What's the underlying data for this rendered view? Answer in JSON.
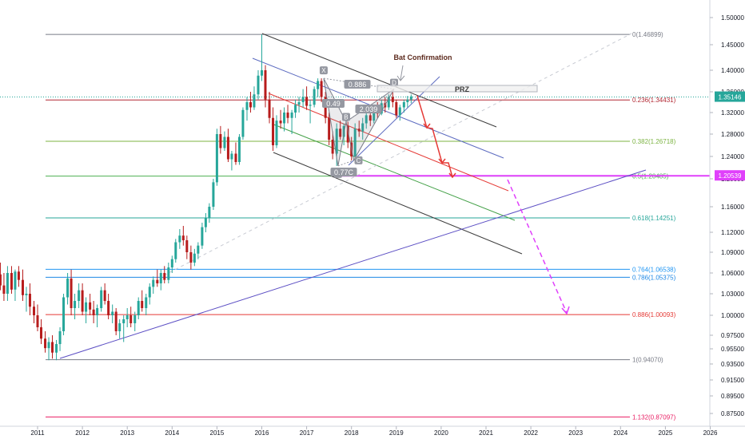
{
  "chart_data": {
    "type": "candlestick",
    "symbol_axis": "price",
    "x_axis": {
      "ticks": [
        "2011",
        "2012",
        "2013",
        "2014",
        "2015",
        "2016",
        "2017",
        "2018",
        "2019",
        "2020",
        "2021",
        "2022",
        "2023",
        "2024",
        "2025",
        "2026"
      ],
      "range": [
        2010.0,
        2026.3
      ]
    },
    "y_axis": {
      "ticks": [
        "1.50000",
        "1.45000",
        "1.40000",
        "1.36000",
        "1.32000",
        "1.28000",
        "1.24000",
        "1.20000",
        "1.16000",
        "1.12000",
        "1.09000",
        "1.06000",
        "1.03000",
        "1.00000",
        "0.97500",
        "0.95500",
        "0.93500",
        "0.91500",
        "0.89500",
        "0.87500"
      ],
      "current_price": "1.35146",
      "highlight_price": "1.20539",
      "scale": "nonlinear-log-like"
    },
    "fibonacci": [
      {
        "ratio": "0",
        "price": "1.46899",
        "text": "0(1.46899)",
        "color": "#787b86"
      },
      {
        "ratio": "0.236",
        "price": "1.34431",
        "text": "0.236(1.34431)",
        "color": "#b22833"
      },
      {
        "ratio": "0.382",
        "price": "1.26718",
        "text": "0.382(1.26718)",
        "color": "#7cb342"
      },
      {
        "ratio": "0.5",
        "price": "1.20485",
        "text": "0.5(1.20485)",
        "color": "#4caf50"
      },
      {
        "ratio": "0.618",
        "price": "1.14251",
        "text": "0.618(1.14251)",
        "color": "#26a69a"
      },
      {
        "ratio": "0.764",
        "price": "1.06538",
        "text": "0.764(1.06538)",
        "color": "#2196f3"
      },
      {
        "ratio": "0.786",
        "price": "1.05375",
        "text": "0.786(1.05375)",
        "color": "#1e88e5"
      },
      {
        "ratio": "0.886",
        "price": "1.00093",
        "text": "0.886(1.00093)",
        "color": "#e53935"
      },
      {
        "ratio": "1",
        "price": "0.94070",
        "text": "1(0.94070)",
        "color": "#787b86"
      },
      {
        "ratio": "1.132",
        "price": "0.87097",
        "text": "1.132(0.87097)",
        "color": "#e91e63"
      }
    ],
    "pattern": {
      "name": "Bat",
      "points": [
        {
          "label": "X",
          "year": 2017.38,
          "price": 1.385
        },
        {
          "label": "A",
          "year": 2017.7,
          "price": 1.223
        },
        {
          "label": "B",
          "year": 2017.88,
          "price": 1.303
        },
        {
          "label": "C",
          "year": 2018.05,
          "price": 1.233
        },
        {
          "label": "D",
          "year": 2018.95,
          "price": 1.365
        }
      ],
      "ratios": [
        "0.886",
        "0.49",
        "2.039",
        "0.77C"
      ],
      "prz_label": "PRZ",
      "confirmation_label": "Bat Confirmation"
    },
    "candles": [
      {
        "t": 2010.0,
        "o": 1.045,
        "h": 1.083,
        "l": 1.03,
        "c": 1.065
      },
      {
        "t": 2010.08,
        "o": 1.065,
        "h": 1.09,
        "l": 1.05,
        "c": 1.058
      },
      {
        "t": 2010.17,
        "o": 1.058,
        "h": 1.075,
        "l": 1.035,
        "c": 1.042
      },
      {
        "t": 2010.25,
        "o": 1.042,
        "h": 1.06,
        "l": 1.02,
        "c": 1.03
      },
      {
        "t": 2010.33,
        "o": 1.03,
        "h": 1.07,
        "l": 1.02,
        "c": 1.06
      },
      {
        "t": 2010.42,
        "o": 1.06,
        "h": 1.07,
        "l": 1.03,
        "c": 1.036
      },
      {
        "t": 2010.5,
        "o": 1.036,
        "h": 1.065,
        "l": 1.02,
        "c": 1.062
      },
      {
        "t": 2010.58,
        "o": 1.062,
        "h": 1.07,
        "l": 1.04,
        "c": 1.05
      },
      {
        "t": 2010.67,
        "o": 1.05,
        "h": 1.065,
        "l": 1.02,
        "c": 1.028
      },
      {
        "t": 2010.75,
        "o": 1.028,
        "h": 1.04,
        "l": 1.005,
        "c": 1.03
      },
      {
        "t": 2010.83,
        "o": 1.03,
        "h": 1.045,
        "l": 1.0,
        "c": 1.012
      },
      {
        "t": 2010.92,
        "o": 1.012,
        "h": 1.02,
        "l": 0.99,
        "c": 1.0
      },
      {
        "t": 2011.0,
        "o": 1.0,
        "h": 1.015,
        "l": 0.98,
        "c": 0.985
      },
      {
        "t": 2011.08,
        "o": 0.985,
        "h": 0.995,
        "l": 0.962,
        "c": 0.97
      },
      {
        "t": 2011.17,
        "o": 0.97,
        "h": 0.98,
        "l": 0.95,
        "c": 0.956
      },
      {
        "t": 2011.25,
        "o": 0.956,
        "h": 0.972,
        "l": 0.94,
        "c": 0.965
      },
      {
        "t": 2011.33,
        "o": 0.965,
        "h": 0.975,
        "l": 0.942,
        "c": 0.95
      },
      {
        "t": 2011.42,
        "o": 0.95,
        "h": 0.968,
        "l": 0.94,
        "c": 0.962
      },
      {
        "t": 2011.5,
        "o": 0.962,
        "h": 0.985,
        "l": 0.952,
        "c": 0.98
      },
      {
        "t": 2011.58,
        "o": 0.98,
        "h": 1.03,
        "l": 0.975,
        "c": 1.025
      },
      {
        "t": 2011.67,
        "o": 1.025,
        "h": 1.06,
        "l": 1.015,
        "c": 1.052
      },
      {
        "t": 2011.75,
        "o": 1.052,
        "h": 1.065,
        "l": 1.0,
        "c": 1.01
      },
      {
        "t": 2011.83,
        "o": 1.01,
        "h": 1.03,
        "l": 0.995,
        "c": 1.02
      },
      {
        "t": 2011.92,
        "o": 1.02,
        "h": 1.045,
        "l": 1.01,
        "c": 1.035
      },
      {
        "t": 2012.0,
        "o": 1.035,
        "h": 1.045,
        "l": 1.0,
        "c": 1.005
      },
      {
        "t": 2012.08,
        "o": 1.005,
        "h": 1.025,
        "l": 0.99,
        "c": 1.018
      },
      {
        "t": 2012.17,
        "o": 1.018,
        "h": 1.03,
        "l": 1.0,
        "c": 1.008
      },
      {
        "t": 2012.25,
        "o": 1.008,
        "h": 1.02,
        "l": 0.99,
        "c": 1.0
      },
      {
        "t": 2012.33,
        "o": 1.0,
        "h": 1.015,
        "l": 0.985,
        "c": 1.01
      },
      {
        "t": 2012.42,
        "o": 1.01,
        "h": 1.04,
        "l": 1.005,
        "c": 1.035
      },
      {
        "t": 2012.5,
        "o": 1.035,
        "h": 1.045,
        "l": 1.015,
        "c": 1.02
      },
      {
        "t": 2012.58,
        "o": 1.02,
        "h": 1.03,
        "l": 0.995,
        "c": 1.0
      },
      {
        "t": 2012.67,
        "o": 1.0,
        "h": 1.015,
        "l": 0.99,
        "c": 1.005
      },
      {
        "t": 2012.75,
        "o": 1.005,
        "h": 1.01,
        "l": 0.975,
        "c": 0.98
      },
      {
        "t": 2012.83,
        "o": 0.98,
        "h": 0.995,
        "l": 0.97,
        "c": 0.99
      },
      {
        "t": 2012.92,
        "o": 0.99,
        "h": 1.0,
        "l": 0.965,
        "c": 0.995
      },
      {
        "t": 2013.0,
        "o": 0.995,
        "h": 1.01,
        "l": 0.985,
        "c": 1.0
      },
      {
        "t": 2013.08,
        "o": 1.0,
        "h": 1.012,
        "l": 0.985,
        "c": 0.99
      },
      {
        "t": 2013.17,
        "o": 0.99,
        "h": 1.005,
        "l": 0.98,
        "c": 1.0
      },
      {
        "t": 2013.25,
        "o": 1.0,
        "h": 1.025,
        "l": 0.995,
        "c": 1.02
      },
      {
        "t": 2013.33,
        "o": 1.02,
        "h": 1.035,
        "l": 1.005,
        "c": 1.01
      },
      {
        "t": 2013.42,
        "o": 1.01,
        "h": 1.03,
        "l": 1.0,
        "c": 1.025
      },
      {
        "t": 2013.5,
        "o": 1.025,
        "h": 1.045,
        "l": 1.015,
        "c": 1.04
      },
      {
        "t": 2013.58,
        "o": 1.04,
        "h": 1.055,
        "l": 1.03,
        "c": 1.05
      },
      {
        "t": 2013.67,
        "o": 1.05,
        "h": 1.065,
        "l": 1.04,
        "c": 1.045
      },
      {
        "t": 2013.75,
        "o": 1.045,
        "h": 1.065,
        "l": 1.035,
        "c": 1.06
      },
      {
        "t": 2013.83,
        "o": 1.06,
        "h": 1.07,
        "l": 1.045,
        "c": 1.05
      },
      {
        "t": 2013.92,
        "o": 1.05,
        "h": 1.075,
        "l": 1.045,
        "c": 1.068
      },
      {
        "t": 2014.0,
        "o": 1.068,
        "h": 1.085,
        "l": 1.06,
        "c": 1.08
      },
      {
        "t": 2014.08,
        "o": 1.08,
        "h": 1.11,
        "l": 1.075,
        "c": 1.105
      },
      {
        "t": 2014.17,
        "o": 1.105,
        "h": 1.125,
        "l": 1.095,
        "c": 1.115
      },
      {
        "t": 2014.25,
        "o": 1.115,
        "h": 1.13,
        "l": 1.1,
        "c": 1.108
      },
      {
        "t": 2014.33,
        "o": 1.108,
        "h": 1.115,
        "l": 1.08,
        "c": 1.09
      },
      {
        "t": 2014.42,
        "o": 1.09,
        "h": 1.1,
        "l": 1.065,
        "c": 1.075
      },
      {
        "t": 2014.5,
        "o": 1.075,
        "h": 1.095,
        "l": 1.07,
        "c": 1.088
      },
      {
        "t": 2014.58,
        "o": 1.088,
        "h": 1.105,
        "l": 1.08,
        "c": 1.1
      },
      {
        "t": 2014.67,
        "o": 1.1,
        "h": 1.135,
        "l": 1.095,
        "c": 1.128
      },
      {
        "t": 2014.75,
        "o": 1.128,
        "h": 1.15,
        "l": 1.12,
        "c": 1.142
      },
      {
        "t": 2014.83,
        "o": 1.142,
        "h": 1.165,
        "l": 1.135,
        "c": 1.16
      },
      {
        "t": 2014.92,
        "o": 1.16,
        "h": 1.2,
        "l": 1.155,
        "c": 1.195
      },
      {
        "t": 2015.0,
        "o": 1.195,
        "h": 1.29,
        "l": 1.19,
        "c": 1.28
      },
      {
        "t": 2015.08,
        "o": 1.28,
        "h": 1.295,
        "l": 1.245,
        "c": 1.255
      },
      {
        "t": 2015.17,
        "o": 1.255,
        "h": 1.285,
        "l": 1.25,
        "c": 1.275
      },
      {
        "t": 2015.25,
        "o": 1.275,
        "h": 1.29,
        "l": 1.23,
        "c": 1.235
      },
      {
        "t": 2015.33,
        "o": 1.235,
        "h": 1.25,
        "l": 1.215,
        "c": 1.245
      },
      {
        "t": 2015.42,
        "o": 1.245,
        "h": 1.265,
        "l": 1.225,
        "c": 1.23
      },
      {
        "t": 2015.5,
        "o": 1.23,
        "h": 1.28,
        "l": 1.225,
        "c": 1.275
      },
      {
        "t": 2015.58,
        "o": 1.275,
        "h": 1.33,
        "l": 1.27,
        "c": 1.325
      },
      {
        "t": 2015.67,
        "o": 1.325,
        "h": 1.35,
        "l": 1.305,
        "c": 1.34
      },
      {
        "t": 2015.75,
        "o": 1.34,
        "h": 1.36,
        "l": 1.32,
        "c": 1.33
      },
      {
        "t": 2015.83,
        "o": 1.33,
        "h": 1.37,
        "l": 1.325,
        "c": 1.355
      },
      {
        "t": 2015.92,
        "o": 1.355,
        "h": 1.4,
        "l": 1.345,
        "c": 1.39
      },
      {
        "t": 2016.0,
        "o": 1.39,
        "h": 1.469,
        "l": 1.38,
        "c": 1.4
      },
      {
        "t": 2016.08,
        "o": 1.4,
        "h": 1.41,
        "l": 1.33,
        "c": 1.345
      },
      {
        "t": 2016.17,
        "o": 1.345,
        "h": 1.36,
        "l": 1.3,
        "c": 1.31
      },
      {
        "t": 2016.25,
        "o": 1.31,
        "h": 1.33,
        "l": 1.25,
        "c": 1.26
      },
      {
        "t": 2016.33,
        "o": 1.26,
        "h": 1.315,
        "l": 1.255,
        "c": 1.305
      },
      {
        "t": 2016.42,
        "o": 1.305,
        "h": 1.325,
        "l": 1.29,
        "c": 1.3
      },
      {
        "t": 2016.5,
        "o": 1.3,
        "h": 1.33,
        "l": 1.285,
        "c": 1.32
      },
      {
        "t": 2016.58,
        "o": 1.32,
        "h": 1.335,
        "l": 1.3,
        "c": 1.31
      },
      {
        "t": 2016.67,
        "o": 1.31,
        "h": 1.325,
        "l": 1.28,
        "c": 1.32
      },
      {
        "t": 2016.75,
        "o": 1.32,
        "h": 1.345,
        "l": 1.31,
        "c": 1.335
      },
      {
        "t": 2016.83,
        "o": 1.335,
        "h": 1.35,
        "l": 1.32,
        "c": 1.34
      },
      {
        "t": 2016.92,
        "o": 1.34,
        "h": 1.365,
        "l": 1.33,
        "c": 1.35
      },
      {
        "t": 2017.0,
        "o": 1.35,
        "h": 1.37,
        "l": 1.325,
        "c": 1.333
      },
      {
        "t": 2017.08,
        "o": 1.333,
        "h": 1.345,
        "l": 1.3,
        "c": 1.335
      },
      {
        "t": 2017.17,
        "o": 1.335,
        "h": 1.37,
        "l": 1.33,
        "c": 1.365
      },
      {
        "t": 2017.25,
        "o": 1.365,
        "h": 1.385,
        "l": 1.35,
        "c": 1.38
      },
      {
        "t": 2017.33,
        "o": 1.38,
        "h": 1.385,
        "l": 1.34,
        "c": 1.35
      },
      {
        "t": 2017.42,
        "o": 1.35,
        "h": 1.36,
        "l": 1.3,
        "c": 1.31
      },
      {
        "t": 2017.5,
        "o": 1.31,
        "h": 1.32,
        "l": 1.26,
        "c": 1.27
      },
      {
        "t": 2017.58,
        "o": 1.27,
        "h": 1.285,
        "l": 1.235,
        "c": 1.245
      },
      {
        "t": 2017.67,
        "o": 1.245,
        "h": 1.3,
        "l": 1.223,
        "c": 1.29
      },
      {
        "t": 2017.75,
        "o": 1.29,
        "h": 1.305,
        "l": 1.27,
        "c": 1.275
      },
      {
        "t": 2017.83,
        "o": 1.275,
        "h": 1.3,
        "l": 1.26,
        "c": 1.295
      },
      {
        "t": 2017.92,
        "o": 1.295,
        "h": 1.303,
        "l": 1.255,
        "c": 1.265
      },
      {
        "t": 2018.0,
        "o": 1.265,
        "h": 1.275,
        "l": 1.233,
        "c": 1.24
      },
      {
        "t": 2018.08,
        "o": 1.24,
        "h": 1.3,
        "l": 1.235,
        "c": 1.29
      },
      {
        "t": 2018.17,
        "o": 1.29,
        "h": 1.305,
        "l": 1.275,
        "c": 1.285
      },
      {
        "t": 2018.25,
        "o": 1.285,
        "h": 1.31,
        "l": 1.27,
        "c": 1.3
      },
      {
        "t": 2018.33,
        "o": 1.3,
        "h": 1.32,
        "l": 1.29,
        "c": 1.315
      },
      {
        "t": 2018.42,
        "o": 1.315,
        "h": 1.33,
        "l": 1.295,
        "c": 1.305
      },
      {
        "t": 2018.5,
        "o": 1.305,
        "h": 1.335,
        "l": 1.3,
        "c": 1.325
      },
      {
        "t": 2018.58,
        "o": 1.325,
        "h": 1.34,
        "l": 1.31,
        "c": 1.318
      },
      {
        "t": 2018.67,
        "o": 1.318,
        "h": 1.345,
        "l": 1.315,
        "c": 1.338
      },
      {
        "t": 2018.75,
        "o": 1.338,
        "h": 1.35,
        "l": 1.32,
        "c": 1.33
      },
      {
        "t": 2018.83,
        "o": 1.33,
        "h": 1.355,
        "l": 1.325,
        "c": 1.35
      },
      {
        "t": 2018.92,
        "o": 1.35,
        "h": 1.365,
        "l": 1.33,
        "c": 1.34
      },
      {
        "t": 2019.0,
        "o": 1.34,
        "h": 1.345,
        "l": 1.31,
        "c": 1.315
      },
      {
        "t": 2019.08,
        "o": 1.315,
        "h": 1.335,
        "l": 1.305,
        "c": 1.33
      },
      {
        "t": 2019.17,
        "o": 1.33,
        "h": 1.345,
        "l": 1.32,
        "c": 1.34
      },
      {
        "t": 2019.25,
        "o": 1.34,
        "h": 1.352,
        "l": 1.33,
        "c": 1.345
      },
      {
        "t": 2019.33,
        "o": 1.345,
        "h": 1.355,
        "l": 1.338,
        "c": 1.351
      }
    ],
    "colors": {
      "up": "#26a69a",
      "down": "#b71c1c",
      "accent": "#e040fb",
      "price_label": "#26a69a"
    }
  }
}
